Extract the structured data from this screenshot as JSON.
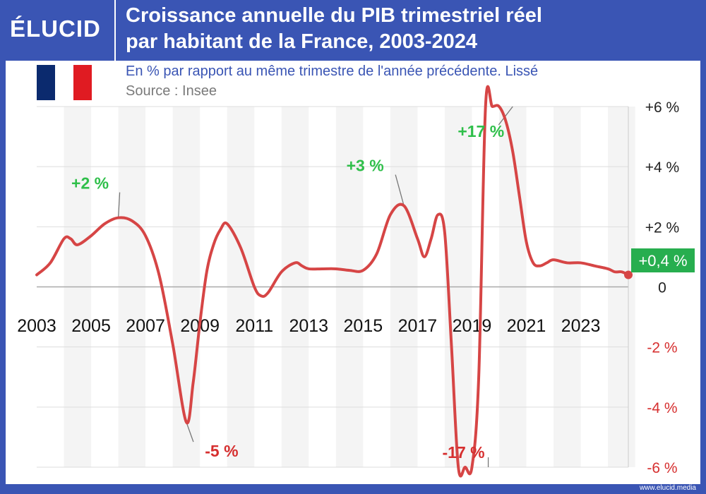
{
  "header": {
    "logo": "ÉLUCID",
    "title_line1": "Croissance annuelle du PIB trimestriel réel",
    "title_line2": "par habitant de la France, 2003-2024"
  },
  "subtitle": "En % par rapport au même trimestre de l'année précédente. Lissé",
  "source": "Source : Insee",
  "footer": "www.elucid.media",
  "flag_colors": [
    "#0b2a6e",
    "#ffffff",
    "#e01b22"
  ],
  "colors": {
    "line": "#d64545",
    "positive_label": "#2fbf4a",
    "negative_label": "#d62f2f",
    "band": "#f4f4f4",
    "grid": "#dddddd"
  },
  "chart_data": {
    "type": "line",
    "x_tick_labels": [
      "2003",
      "2005",
      "2007",
      "2009",
      "2011",
      "2013",
      "2015",
      "2017",
      "2019",
      "2021",
      "2023"
    ],
    "y_tick_labels": [
      "+6 %",
      "+4 %",
      "+2 %",
      "0",
      "-2 %",
      "-4 %",
      "-6 %"
    ],
    "y_ticks": [
      6,
      4,
      2,
      0,
      -2,
      -4,
      -6
    ],
    "ylim": [
      -6,
      6
    ],
    "xlim": [
      2003,
      2024.75
    ],
    "series": [
      {
        "x": [
          2003,
          2003.5,
          2004,
          2004.25,
          2004.5,
          2005,
          2005.5,
          2006,
          2006.5,
          2007,
          2007.5,
          2008,
          2008.5,
          2008.75,
          2009,
          2009.25,
          2009.5,
          2009.75,
          2010,
          2010.5,
          2011,
          2011.25,
          2011.5,
          2012,
          2012.5,
          2012.75,
          2013,
          2013.5,
          2014,
          2014.5,
          2015,
          2015.5,
          2016,
          2016.5,
          2017,
          2017.25,
          2017.5,
          2017.75,
          2018,
          2018.25,
          2018.5,
          2018.75,
          2019,
          2019.25,
          2019.5,
          2019.75,
          2020,
          2020.25,
          2020.5,
          2020.75,
          2021,
          2021.25,
          2021.5,
          2021.75,
          2022,
          2022.5,
          2023,
          2023.5,
          2024,
          2024.25,
          2024.5,
          2024.75
        ],
        "y": [
          0.4,
          0.8,
          1.6,
          1.6,
          1.4,
          1.7,
          2.1,
          2.3,
          2.2,
          1.7,
          0.4,
          -1.9,
          -4.5,
          -3.2,
          -1.2,
          0.5,
          1.4,
          1.9,
          2.1,
          1.3,
          0.0,
          -0.3,
          -0.2,
          0.5,
          0.8,
          0.7,
          0.6,
          0.6,
          0.6,
          0.55,
          0.55,
          1.1,
          2.4,
          2.7,
          1.6,
          1.0,
          1.6,
          2.4,
          1.8,
          -2.0,
          -6.0,
          -6.0,
          -6.0,
          -3.0,
          6.0,
          6.0,
          6.0,
          5.5,
          4.5,
          3.0,
          1.5,
          0.8,
          0.7,
          0.8,
          0.9,
          0.8,
          0.8,
          0.7,
          0.6,
          0.5,
          0.5,
          0.4
        ]
      }
    ],
    "annotations": [
      {
        "text": "+2 %",
        "x": 2006,
        "y": 2.3,
        "tone": "positive"
      },
      {
        "text": "-5 %",
        "x": 2008.5,
        "y": -4.5,
        "tone": "negative"
      },
      {
        "text": "+3 %",
        "x": 2016.5,
        "y": 2.7,
        "tone": "positive"
      },
      {
        "text": "-17 %",
        "x": 2019.6,
        "y": -6.0,
        "tone": "negative"
      },
      {
        "text": "+17 %",
        "x": 2020.5,
        "y": 6.0,
        "tone": "positive"
      }
    ],
    "last_value_label": "+0,4 %",
    "last_value_color": "#27ae4f"
  }
}
